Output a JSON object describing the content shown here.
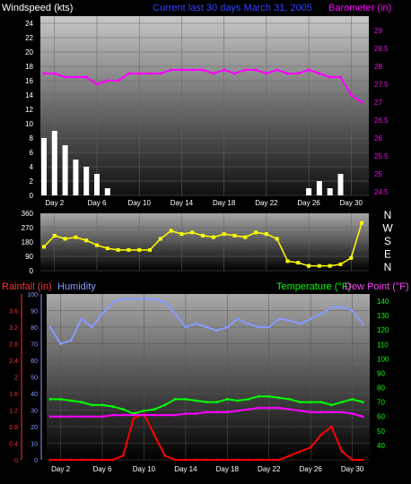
{
  "header": {
    "wind_label": "Windspeed (kts)",
    "title": "Current last 30 days March 31, 2005",
    "baro_label": "Barometer (in)"
  },
  "lower_header": {
    "rain_label": "Rainfall (in)",
    "humidity_label": "Humidity",
    "temp_label": "Temperature (°F)",
    "dew_label": "Dew Point (°F)"
  },
  "colors": {
    "wind": "#ffffff",
    "wind_avg": "#90ee90",
    "barometer": "#ff00ff",
    "direction": "#ffff00",
    "rainfall": "#ff0000",
    "humidity": "#8899ff",
    "temperature": "#00ff00",
    "dewpoint": "#ff00ff"
  },
  "x_ticks": [
    "Day 2",
    "Day 6",
    "Day 10",
    "Day 14",
    "Day 18",
    "Day 22",
    "Day 26",
    "Day 30"
  ],
  "chart_data": [
    {
      "type": "line",
      "name": "wind-barometer",
      "x": [
        1,
        2,
        3,
        4,
        5,
        6,
        7,
        8,
        9,
        10,
        11,
        12,
        13,
        14,
        15,
        16,
        17,
        18,
        19,
        20,
        21,
        22,
        23,
        24,
        25,
        26,
        27,
        28,
        29,
        30,
        31
      ],
      "ylim": [
        0,
        25
      ],
      "y_ticks": [
        0,
        2,
        4,
        6,
        8,
        10,
        12,
        14,
        16,
        18,
        20,
        22,
        24
      ],
      "y2lim": [
        24.4,
        29.4
      ],
      "y2_ticks": [
        24.5,
        25,
        25.5,
        26,
        26.5,
        27,
        27.5,
        28,
        28.5,
        29
      ],
      "series": [
        {
          "name": "Windspeed",
          "axis": "left",
          "values": [
            8,
            9,
            7,
            5,
            4,
            3,
            1,
            0,
            0,
            0,
            0,
            0,
            0,
            0,
            0,
            0,
            0,
            0,
            0,
            0,
            0,
            0,
            0,
            0,
            0,
            1,
            2,
            1,
            3,
            0,
            0
          ]
        },
        {
          "name": "Barometer",
          "axis": "right",
          "values": [
            27.8,
            27.8,
            27.7,
            27.7,
            27.7,
            27.5,
            27.6,
            27.6,
            27.8,
            27.8,
            27.8,
            27.8,
            27.9,
            27.9,
            27.9,
            27.9,
            27.8,
            27.9,
            27.8,
            27.9,
            27.9,
            27.8,
            27.9,
            27.8,
            27.8,
            27.9,
            27.8,
            27.7,
            27.7,
            27.2,
            27.0
          ]
        }
      ]
    },
    {
      "type": "scatter",
      "name": "wind-direction",
      "ylim": [
        0,
        360
      ],
      "y_ticks": [
        0,
        90,
        180,
        270,
        360
      ],
      "compass": [
        "N",
        "W",
        "S",
        "E",
        "N"
      ],
      "x": [
        1,
        2,
        3,
        4,
        5,
        6,
        7,
        8,
        9,
        10,
        11,
        12,
        13,
        14,
        15,
        16,
        17,
        18,
        19,
        20,
        21,
        22,
        23,
        24,
        25,
        26,
        27,
        28,
        29,
        30,
        31
      ],
      "values": [
        150,
        220,
        200,
        210,
        190,
        160,
        140,
        130,
        130,
        130,
        130,
        200,
        250,
        230,
        240,
        220,
        210,
        230,
        220,
        210,
        240,
        230,
        200,
        60,
        50,
        30,
        30,
        30,
        40,
        80,
        300
      ]
    },
    {
      "type": "line",
      "name": "weather",
      "ylim_rain": [
        0,
        4.0
      ],
      "rain_ticks": [
        0,
        0.4,
        0.8,
        1.2,
        1.6,
        2,
        2.4,
        2.8,
        3.2,
        3.6
      ],
      "ylim_humidity": [
        0,
        100
      ],
      "humidity_ticks": [
        0,
        10,
        20,
        30,
        40,
        50,
        60,
        70,
        80,
        90,
        100
      ],
      "ylim_temp": [
        30,
        145
      ],
      "temp_ticks": [
        40,
        50,
        60,
        70,
        80,
        90,
        100,
        110,
        120,
        130,
        140
      ],
      "x": [
        1,
        2,
        3,
        4,
        5,
        6,
        7,
        8,
        9,
        10,
        11,
        12,
        13,
        14,
        15,
        16,
        17,
        18,
        19,
        20,
        21,
        22,
        23,
        24,
        25,
        26,
        27,
        28,
        29,
        30,
        31
      ],
      "series": [
        {
          "name": "Rainfall",
          "axis": "rain",
          "values": [
            0,
            0,
            0,
            0,
            0,
            0,
            0,
            0.1,
            1.0,
            1.1,
            0.6,
            0.1,
            0,
            0,
            0,
            0,
            0,
            0,
            0,
            0,
            0,
            0,
            0,
            0.1,
            0.2,
            0.3,
            0.6,
            0.8,
            0.2,
            0,
            0
          ]
        },
        {
          "name": "Humidity",
          "axis": "humidity",
          "values": [
            80,
            70,
            72,
            85,
            80,
            88,
            95,
            97,
            97,
            97,
            97,
            95,
            88,
            80,
            82,
            80,
            78,
            80,
            85,
            82,
            80,
            80,
            85,
            84,
            82,
            85,
            88,
            92,
            92,
            90,
            82
          ]
        },
        {
          "name": "Temperature",
          "axis": "temp",
          "values": [
            72,
            72,
            71,
            70,
            68,
            68,
            67,
            65,
            62,
            64,
            65,
            68,
            72,
            72,
            71,
            70,
            70,
            72,
            71,
            72,
            74,
            74,
            73,
            72,
            70,
            70,
            70,
            68,
            70,
            72,
            70
          ]
        },
        {
          "name": "Dew Point",
          "axis": "temp",
          "values": [
            60,
            60,
            60,
            60,
            60,
            60,
            61,
            61,
            61,
            61,
            61,
            61,
            61,
            62,
            62,
            63,
            63,
            63,
            64,
            65,
            66,
            66,
            66,
            65,
            64,
            63,
            63,
            63,
            63,
            62,
            60
          ]
        }
      ]
    }
  ]
}
